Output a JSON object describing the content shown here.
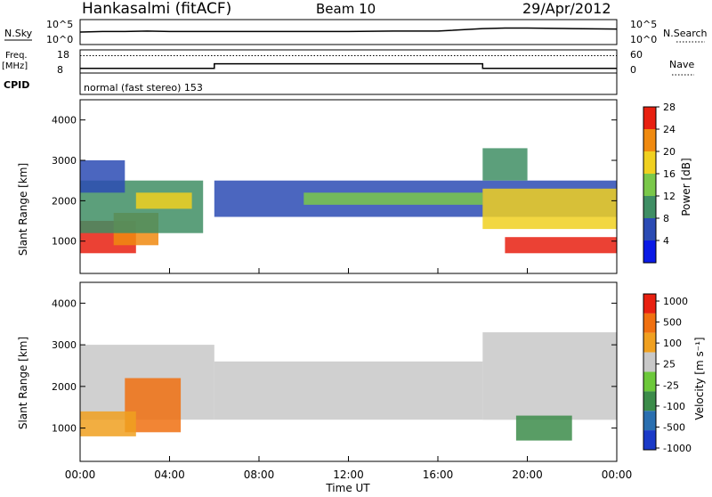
{
  "header": {
    "station": "Hankasalmi (fitACF)",
    "beam": "Beam 10",
    "date": "29/Apr/2012"
  },
  "panels": {
    "nsky_label": "N.Sky",
    "nsearch_label": "N.Search",
    "noise_ticks": [
      "10^5",
      "10^0"
    ],
    "freq_label_top": "Freq.",
    "freq_label_unit": "[MHz]",
    "freq_ticks": [
      "18",
      "8"
    ],
    "nave_label": "Nave",
    "nave_ticks": [
      "60",
      "0"
    ],
    "cpid_label": "CPID",
    "cpid_text": "normal (fast stereo) 153",
    "time_axis_label": "Time UT"
  },
  "chart_data": [
    {
      "type": "line",
      "name": "noise",
      "x_ticks": [
        "00:00",
        "04:00",
        "08:00",
        "12:00",
        "16:00",
        "20:00",
        "00:00"
      ],
      "x_range_hours": [
        0,
        24
      ],
      "series": [
        {
          "name": "N.Sky",
          "x": [
            0,
            1,
            2,
            3,
            4,
            5,
            6,
            8,
            10,
            12,
            14,
            16,
            18,
            19,
            20,
            22,
            24
          ],
          "y_log10": [
            2.5,
            2.6,
            2.6,
            2.7,
            2.6,
            2.6,
            2.6,
            2.6,
            2.6,
            2.6,
            2.7,
            2.7,
            3.2,
            3.3,
            3.3,
            3.2,
            3.1
          ]
        }
      ]
    },
    {
      "type": "line",
      "name": "frequency-nave",
      "series": [
        {
          "name": "Freq.",
          "x": [
            0,
            6,
            6,
            18,
            18,
            24
          ],
          "y": [
            10,
            10,
            12,
            12,
            10,
            10
          ]
        },
        {
          "name": "Nave",
          "x": [
            0,
            24
          ],
          "y": [
            45,
            45
          ]
        }
      ]
    },
    {
      "type": "heatmap",
      "title": "Power",
      "ylabel": "Slant Range [km]",
      "y_ticks": [
        "1000",
        "2000",
        "3000",
        "4000"
      ],
      "ylim": [
        200,
        4500
      ],
      "colorbar_label": "Power [dB]",
      "colorbar_ticks": [
        "4",
        "8",
        "12",
        "16",
        "20",
        "24",
        "28"
      ],
      "colorbar_colors": [
        "#0a1ae6",
        "#2b4bb4",
        "#3f8e64",
        "#7ac84a",
        "#f0d020",
        "#f08a10",
        "#e82010"
      ],
      "regions": [
        {
          "x": [
            0,
            2.5
          ],
          "y": [
            700,
            1500
          ],
          "level": 28
        },
        {
          "x": [
            1.5,
            3.5
          ],
          "y": [
            900,
            1700
          ],
          "level": 24
        },
        {
          "x": [
            0,
            5.5
          ],
          "y": [
            1200,
            2500
          ],
          "level": 12
        },
        {
          "x": [
            2.5,
            5
          ],
          "y": [
            1800,
            2200
          ],
          "level": 20
        },
        {
          "x": [
            0,
            2
          ],
          "y": [
            2200,
            3000
          ],
          "level": 8
        },
        {
          "x": [
            6,
            24
          ],
          "y": [
            1600,
            2500
          ],
          "level": 8
        },
        {
          "x": [
            10,
            18
          ],
          "y": [
            1900,
            2200
          ],
          "level": 16
        },
        {
          "x": [
            18,
            24
          ],
          "y": [
            1300,
            2300
          ],
          "level": 20
        },
        {
          "x": [
            19,
            24
          ],
          "y": [
            700,
            1100
          ],
          "level": 28
        },
        {
          "x": [
            18,
            20
          ],
          "y": [
            2500,
            3300
          ],
          "level": 12
        }
      ]
    },
    {
      "type": "heatmap",
      "title": "Velocity",
      "ylabel": "Slant Range [km]",
      "y_ticks": [
        "1000",
        "2000",
        "3000",
        "4000"
      ],
      "ylim": [
        200,
        4500
      ],
      "colorbar_label": "Velocity [m s⁻¹]",
      "colorbar_ticks": [
        "1000",
        "500",
        "100",
        "25",
        "-25",
        "-100",
        "-500",
        "-1000"
      ],
      "colorbar_colors": [
        "#1a3ac8",
        "#2a6fb0",
        "#3c8c4a",
        "#6cc83a",
        "#c8c8c8",
        "#f0a020",
        "#f07010",
        "#e82010"
      ],
      "regions": [
        {
          "x": [
            0,
            6
          ],
          "y": [
            1200,
            3000
          ],
          "level": "-25"
        },
        {
          "x": [
            2,
            4.5
          ],
          "y": [
            900,
            2200
          ],
          "level": "-500"
        },
        {
          "x": [
            0,
            2.5
          ],
          "y": [
            800,
            1400
          ],
          "level": "-100"
        },
        {
          "x": [
            6,
            18
          ],
          "y": [
            1200,
            2600
          ],
          "level": "-25"
        },
        {
          "x": [
            18,
            24
          ],
          "y": [
            1200,
            3300
          ],
          "level": "-25"
        },
        {
          "x": [
            19.5,
            22
          ],
          "y": [
            700,
            1300
          ],
          "level": "100"
        }
      ]
    }
  ]
}
